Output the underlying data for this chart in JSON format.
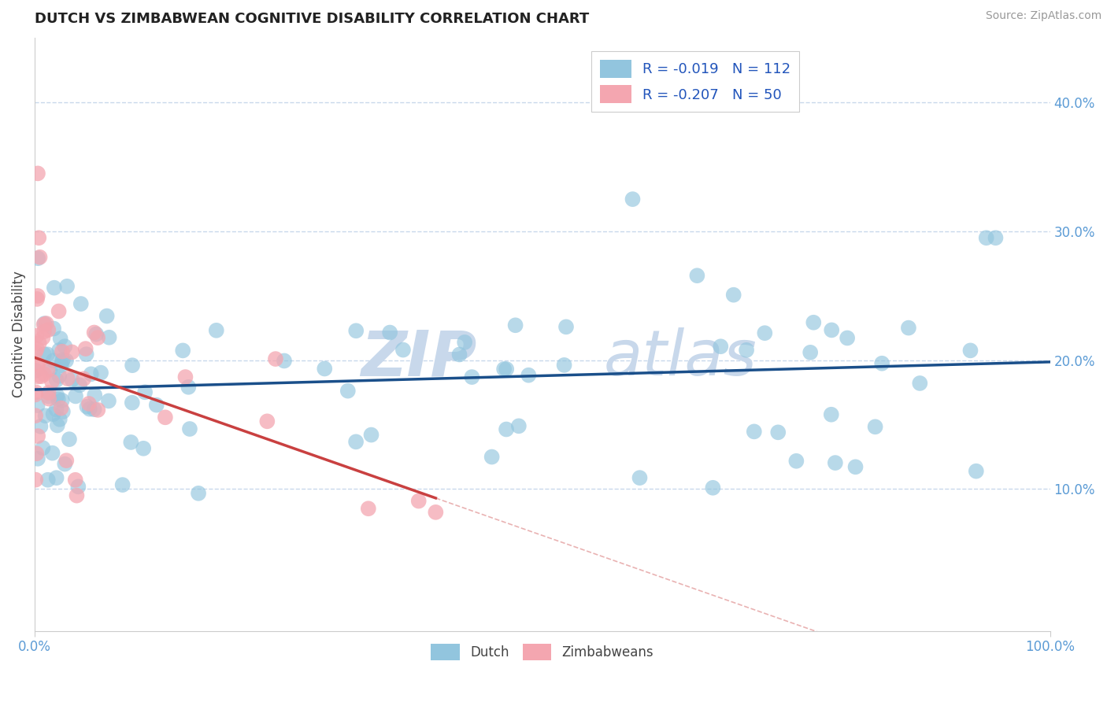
{
  "title": "DUTCH VS ZIMBABWEAN COGNITIVE DISABILITY CORRELATION CHART",
  "source_text": "Source: ZipAtlas.com",
  "ylabel": "Cognitive Disability",
  "ytick_labels": [
    "10.0%",
    "20.0%",
    "30.0%",
    "40.0%"
  ],
  "ytick_values": [
    0.1,
    0.2,
    0.3,
    0.4
  ],
  "xlim": [
    0.0,
    1.0
  ],
  "ylim": [
    -0.01,
    0.45
  ],
  "dutch_R": -0.019,
  "dutch_N": 112,
  "zimb_R": -0.207,
  "zimb_N": 50,
  "dutch_color": "#92c5de",
  "zimb_color": "#f4a6b0",
  "dutch_line_color": "#1a4f8a",
  "zimb_line_color": "#c94040",
  "watermark_zip": "ZIP",
  "watermark_atlas": "atlas",
  "watermark_color": "#c8d8eb",
  "background_color": "#ffffff",
  "grid_color": "#c8d8eb",
  "tick_label_color": "#5b9bd5",
  "title_color": "#222222",
  "source_color": "#999999"
}
